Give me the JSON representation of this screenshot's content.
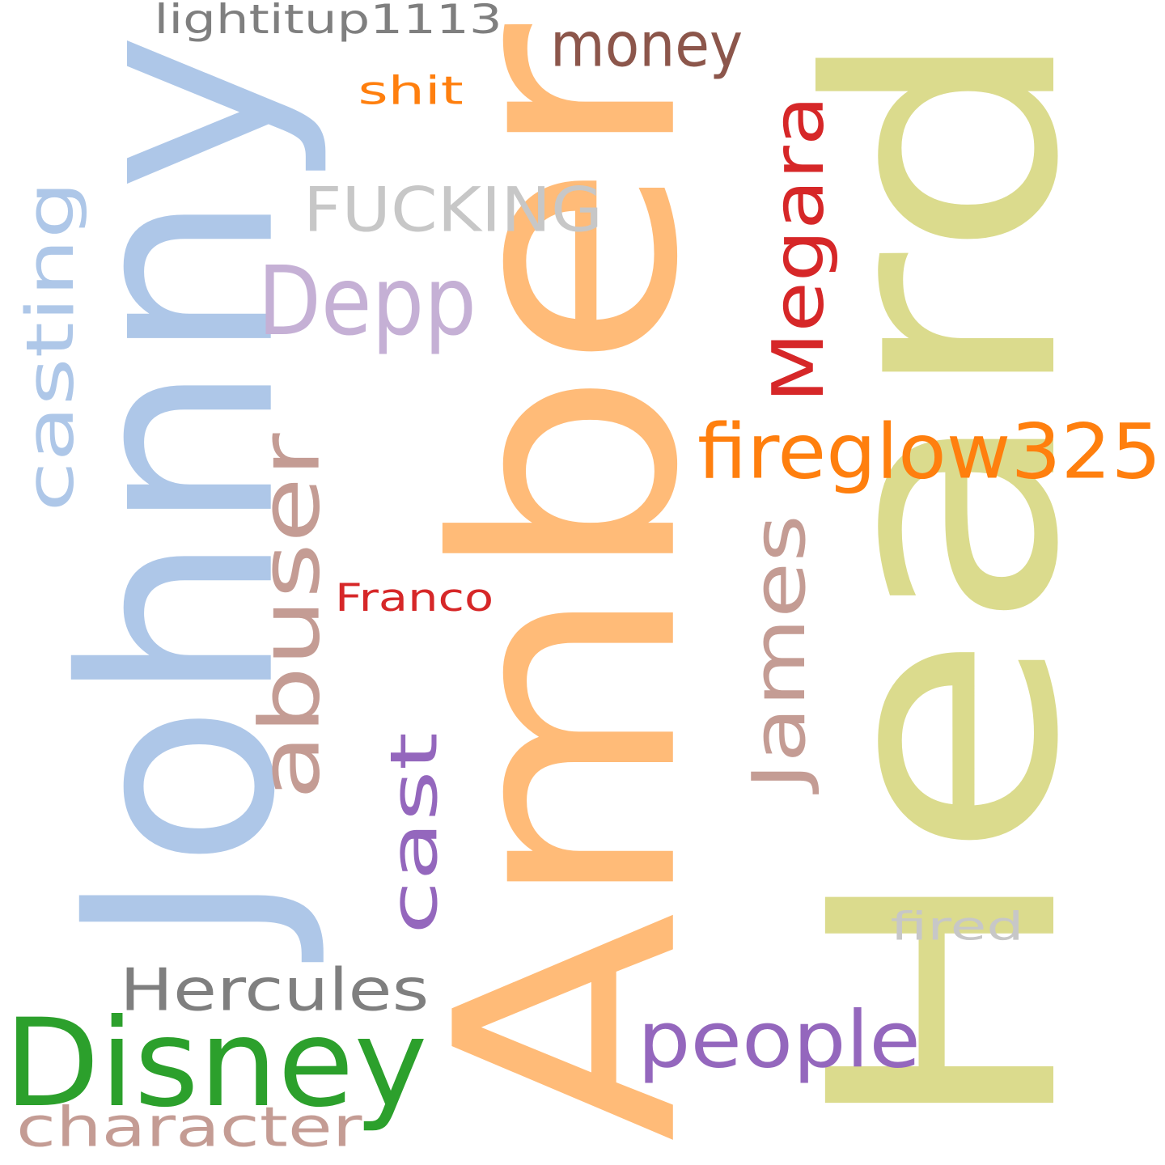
{
  "cloud": {
    "words": [
      {
        "text": "Heard",
        "color": "#dbdb8d",
        "rotated": true
      },
      {
        "text": "Amber",
        "color": "#ffbb78",
        "rotated": true
      },
      {
        "text": "Johnny",
        "color": "#aec7e8",
        "rotated": true
      },
      {
        "text": "Disney",
        "color": "#2ca02c",
        "rotated": false
      },
      {
        "text": "FUCKING",
        "color": "#c7c7c7",
        "rotated": false
      },
      {
        "text": "Depp",
        "color": "#c5b0d5",
        "rotated": false
      },
      {
        "text": "Megara",
        "color": "#d62728",
        "rotated": true
      },
      {
        "text": "fireglow325",
        "color": "#ff7f0e",
        "rotated": false
      },
      {
        "text": "abuser",
        "color": "#c49c94",
        "rotated": true
      },
      {
        "text": "James",
        "color": "#c49c94",
        "rotated": true
      },
      {
        "text": "cast",
        "color": "#9467bd",
        "rotated": true
      },
      {
        "text": "casting",
        "color": "#aec7e8",
        "rotated": true
      },
      {
        "text": "people",
        "color": "#9467bd",
        "rotated": false
      },
      {
        "text": "Hercules",
        "color": "#7f7f7f",
        "rotated": false
      },
      {
        "text": "character",
        "color": "#c49c94",
        "rotated": false
      },
      {
        "text": "money",
        "color": "#8c564b",
        "rotated": false
      },
      {
        "text": "lightitup1113",
        "color": "#7f7f7f",
        "rotated": false
      },
      {
        "text": "shit",
        "color": "#ff7f0e",
        "rotated": false
      },
      {
        "text": "Franco",
        "color": "#d62728",
        "rotated": false
      },
      {
        "text": "fired",
        "color": "#c7c7c7",
        "rotated": false
      }
    ]
  }
}
